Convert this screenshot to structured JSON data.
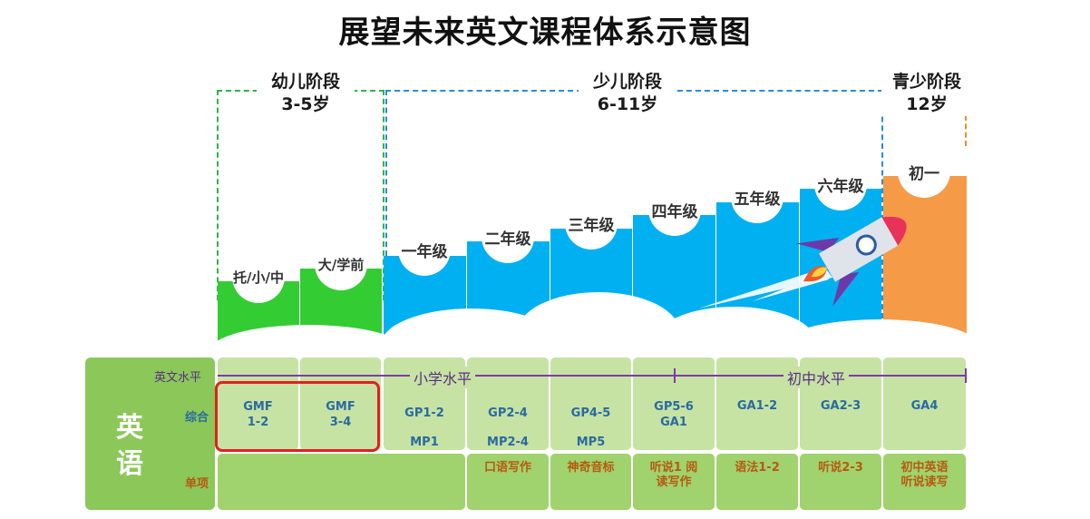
{
  "title": "展望未来英文课程体系示意图",
  "stages": {
    "preschool": {
      "name": "幼儿阶段",
      "age": "3-5岁",
      "color": "#2fb34a"
    },
    "primary": {
      "name": "少儿阶段",
      "age": "6-11岁",
      "color": "#2a8dd6"
    },
    "teen": {
      "name": "青少阶段",
      "age": "12岁",
      "color": "#f08a2c"
    }
  },
  "grades": [
    "托/小/中",
    "大/学前",
    "一年级",
    "二年级",
    "三年级",
    "四年级",
    "五年级",
    "六年级",
    "初一"
  ],
  "colors": {
    "preschool": "#33cc33",
    "primary": "#00b0f0",
    "teen": "#f59a47",
    "row": "#c6e3a4",
    "side": "#8bc859",
    "line": "#7e3aa8",
    "highlight": "#e02020"
  },
  "subject": "英语",
  "row_labels": {
    "level": "英文水平",
    "general": "综合",
    "single": "单项"
  },
  "levels": {
    "primary": "小学水平",
    "junior": "初中水平"
  },
  "general": [
    [
      "GMF",
      "1-2"
    ],
    [
      "GMF",
      "3-4"
    ],
    [
      "GP1-2",
      "MP1"
    ],
    [
      "GP2-4",
      "MP2-4"
    ],
    [
      "GP4-5",
      "MP5"
    ],
    [
      "GP5-6",
      "GA1"
    ],
    [
      "GA1-2"
    ],
    [
      "GA2-3"
    ],
    [
      "GA4"
    ]
  ],
  "single": [
    "口语写作",
    "神奇音标",
    "听说1 阅读写作",
    "语法1-2",
    "听说2-3",
    "初中英语 听说读写"
  ]
}
